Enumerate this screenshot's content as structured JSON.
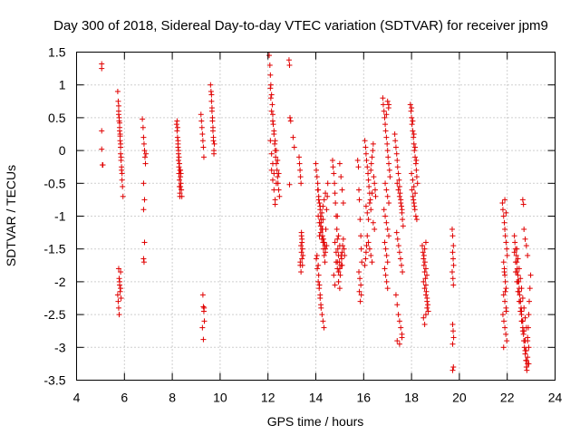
{
  "chart_data": {
    "type": "scatter",
    "title": "Day 300 of 2018, Sidereal Day-to-day VTEC variation (SDTVAR) for receiver jpm9",
    "xlabel": "GPS time / hours",
    "ylabel": "SDTVAR / TECUs",
    "xlim": [
      4,
      24
    ],
    "ylim": [
      -3.5,
      1.5
    ],
    "xticks": [
      4,
      6,
      8,
      10,
      12,
      14,
      16,
      18,
      20,
      22,
      24
    ],
    "xtick_labels": [
      "4",
      "6",
      "8",
      "10",
      "12",
      "14",
      "16",
      "18",
      "20",
      "22",
      "24"
    ],
    "yticks": [
      1.5,
      1,
      0.5,
      0,
      -0.5,
      -1,
      -1.5,
      -2,
      -2.5,
      -3,
      -3.5
    ],
    "ytick_labels": [
      "1.5",
      "1",
      "0.5",
      "0",
      "-0.5",
      "-1",
      "-1.5",
      "-2",
      "-2.5",
      "-3",
      "-3.5"
    ],
    "grid": true,
    "marker": "+",
    "color": "#e00000",
    "series": [
      {
        "name": "SDTVAR",
        "x": [
          5.05,
          5.05,
          5.05,
          5.05,
          5.08,
          5.1,
          5.72,
          5.74,
          5.76,
          5.76,
          5.78,
          5.8,
          5.8,
          5.82,
          5.82,
          5.84,
          5.84,
          5.86,
          5.88,
          5.9,
          5.9,
          5.92,
          5.94,
          5.76,
          5.78,
          5.8,
          5.82,
          5.84,
          5.86,
          5.88,
          5.76,
          5.78,
          5.8,
          5.84,
          5.72,
          5.74,
          5.76,
          5.78,
          5.8,
          5.82,
          5.84,
          5.86,
          6.75,
          6.78,
          6.8,
          6.82,
          6.84,
          6.86,
          6.88,
          6.9,
          6.8,
          6.84,
          6.8,
          6.84,
          6.8,
          6.82,
          8.18,
          8.2,
          8.22,
          8.24,
          8.26,
          8.28,
          8.3,
          8.32,
          8.34,
          8.36,
          8.38,
          8.4,
          8.2,
          8.22,
          8.24,
          8.26,
          8.28,
          8.3,
          8.32,
          8.34,
          8.36,
          8.24,
          8.26,
          8.28,
          8.3,
          8.32,
          8.34,
          9.2,
          9.22,
          9.24,
          9.26,
          9.28,
          9.3,
          9.32,
          9.28,
          9.3,
          9.32,
          9.34,
          9.26,
          9.3,
          9.33,
          9.6,
          9.62,
          9.64,
          9.66,
          9.68,
          9.7,
          9.72,
          9.74,
          9.64,
          9.66,
          9.68,
          9.7,
          9.72,
          9.74,
          9.76,
          12.05,
          12.08,
          12.1,
          12.12,
          12.15,
          12.18,
          12.2,
          12.22,
          12.25,
          12.28,
          12.3,
          12.32,
          12.35,
          12.38,
          12.4,
          12.42,
          12.45,
          12.48,
          12.1,
          12.12,
          12.15,
          12.2,
          12.25,
          12.3,
          12.35,
          12.4,
          12.45,
          12.15,
          12.2,
          12.25,
          12.3,
          12.35,
          12.1,
          12.15,
          12.2,
          12.25,
          12.3,
          12.88,
          12.9,
          12.92,
          12.95,
          12.9,
          13.05,
          13.1,
          13.3,
          13.32,
          13.34,
          13.36,
          13.38,
          13.4,
          13.42,
          13.44,
          13.46,
          13.35,
          13.38,
          13.4,
          13.42,
          13.35,
          13.38,
          13.42,
          13.4,
          13.44,
          14.0,
          14.02,
          14.05,
          14.08,
          14.1,
          14.12,
          14.15,
          14.18,
          14.2,
          14.22,
          14.25,
          14.28,
          14.3,
          14.32,
          14.35,
          14.38,
          14.4,
          14.42,
          14.45,
          14.48,
          14.5,
          14.1,
          14.15,
          14.2,
          14.25,
          14.3,
          14.35,
          14.4,
          14.45,
          14.05,
          14.1,
          14.15,
          14.2,
          14.25,
          14.3,
          14.35,
          14.4,
          14.08,
          14.12,
          14.18,
          14.22,
          14.28,
          14.32,
          14.38,
          14.02,
          14.06,
          14.1,
          14.14,
          14.18,
          14.22,
          14.26,
          14.3,
          14.34,
          14.12,
          14.15,
          14.18,
          14.21,
          14.7,
          14.72,
          14.75,
          14.78,
          14.8,
          14.82,
          14.85,
          14.88,
          14.9,
          14.92,
          14.95,
          14.98,
          15.0,
          15.02,
          15.05,
          15.08,
          15.1,
          15.12,
          15.15,
          15.18,
          15.2,
          14.8,
          14.85,
          14.9,
          14.95,
          15.0,
          15.05,
          15.1,
          15.15,
          14.9,
          14.95,
          15.0,
          15.05,
          15.1,
          14.75,
          14.8,
          14.85,
          14.9,
          14.95,
          15.0,
          15.75,
          15.78,
          15.8,
          15.82,
          15.85,
          15.88,
          15.9,
          15.92,
          15.8,
          15.84,
          15.88,
          15.82,
          15.86,
          15.9,
          16.05,
          16.08,
          16.1,
          16.12,
          16.15,
          16.18,
          16.2,
          16.22,
          16.25,
          16.28,
          16.3,
          16.32,
          16.35,
          16.38,
          16.4,
          16.42,
          16.45,
          16.48,
          16.5,
          16.1,
          16.15,
          16.2,
          16.25,
          16.3,
          16.35,
          16.4,
          16.45,
          16.15,
          16.2,
          16.25,
          16.3,
          16.35,
          16.05,
          16.08,
          16.1,
          16.12,
          16.8,
          16.82,
          16.85,
          16.88,
          16.9,
          16.92,
          16.95,
          16.98,
          17.0,
          17.02,
          17.05,
          17.08,
          17.1,
          16.9,
          16.95,
          17.0,
          17.05,
          16.85,
          16.9,
          16.95,
          17.0,
          17.05,
          16.88,
          16.92,
          16.96,
          17.0,
          16.88,
          16.92,
          16.96,
          17.0,
          17.04,
          16.95,
          17.0,
          17.05,
          17.3,
          17.32,
          17.35,
          17.38,
          17.4,
          17.42,
          17.45,
          17.48,
          17.5,
          17.52,
          17.55,
          17.58,
          17.6,
          17.62,
          17.65,
          17.4,
          17.45,
          17.5,
          17.55,
          17.6,
          17.38,
          17.42,
          17.46,
          17.5,
          17.54,
          17.58,
          17.62,
          17.35,
          17.4,
          17.45,
          17.5,
          17.55,
          17.6,
          17.4,
          17.5,
          17.6,
          17.95,
          17.98,
          18.0,
          18.02,
          18.05,
          18.08,
          18.1,
          18.12,
          18.15,
          18.18,
          18.2,
          18.22,
          18.25,
          18.0,
          18.05,
          18.1,
          18.15,
          18.2,
          18.02,
          18.06,
          18.1,
          18.14,
          18.18,
          18.22,
          18.0,
          18.05,
          18.1,
          18.15,
          18.08,
          18.12,
          18.45,
          18.48,
          18.5,
          18.52,
          18.55,
          18.58,
          18.6,
          18.62,
          18.65,
          18.68,
          18.7,
          18.5,
          18.55,
          18.6,
          18.65,
          18.52,
          18.56,
          18.6,
          18.64,
          18.5,
          18.55,
          18.6,
          18.65,
          18.55,
          18.6,
          19.7,
          19.72,
          19.75,
          19.72,
          19.74,
          19.76,
          19.7,
          19.73,
          19.75,
          19.72,
          19.74,
          19.76,
          19.72,
          19.75,
          19.72,
          21.8,
          21.82,
          21.85,
          21.88,
          21.9,
          21.92,
          21.95,
          21.98,
          22.0,
          21.85,
          21.88,
          21.9,
          21.92,
          21.95,
          21.85,
          21.9,
          21.95,
          21.82,
          21.86,
          21.9,
          21.94,
          21.98,
          21.85,
          21.9,
          21.95,
          21.88,
          21.92,
          21.96,
          22.3,
          22.32,
          22.35,
          22.38,
          22.4,
          22.42,
          22.45,
          22.48,
          22.5,
          22.52,
          22.55,
          22.58,
          22.6,
          22.62,
          22.65,
          22.68,
          22.7,
          22.72,
          22.75,
          22.78,
          22.8,
          22.82,
          22.85,
          22.88,
          22.9,
          22.92,
          22.95,
          22.98,
          22.4,
          22.45,
          22.5,
          22.55,
          22.6,
          22.65,
          22.7,
          22.75,
          22.8,
          22.85,
          22.9,
          22.35,
          22.4,
          22.45,
          22.5,
          22.55,
          22.6,
          22.65,
          22.7,
          22.75,
          22.8,
          22.85,
          22.3,
          22.35,
          22.4,
          22.45,
          22.5,
          22.55,
          22.6,
          22.65,
          22.7,
          22.75,
          22.8,
          22.85,
          22.9,
          22.65,
          22.68,
          22.7,
          22.75,
          22.8,
          22.85
        ],
        "y": [
          1.32,
          1.25,
          0.3,
          0.02,
          -0.22,
          -0.22,
          0.9,
          0.75,
          0.68,
          0.6,
          0.5,
          0.42,
          0.3,
          0.22,
          0.15,
          0.05,
          -0.05,
          -0.15,
          -0.25,
          -0.35,
          -0.45,
          -0.55,
          -0.7,
          0.55,
          0.45,
          0.35,
          0.25,
          0.1,
          -0.1,
          -0.3,
          -1.8,
          -1.95,
          -2.05,
          -2.1,
          -2.2,
          -2.3,
          -2.4,
          -2.5,
          -2.0,
          -2.15,
          -1.85,
          -2.25,
          0.48,
          0.35,
          0.2,
          0.1,
          0.0,
          -0.1,
          -0.2,
          -0.05,
          -0.5,
          -0.75,
          -0.9,
          -1.4,
          -1.65,
          -1.7,
          0.4,
          0.3,
          0.2,
          0.1,
          0.0,
          -0.1,
          -0.2,
          -0.3,
          -0.4,
          -0.5,
          -0.6,
          -0.7,
          0.45,
          0.35,
          0.15,
          -0.05,
          -0.25,
          -0.45,
          -0.65,
          -0.55,
          -0.35,
          0.05,
          -0.15,
          -0.35,
          -0.55,
          -0.7,
          -0.3,
          0.55,
          0.45,
          0.35,
          0.25,
          0.15,
          0.05,
          -0.1,
          -2.2,
          -2.38,
          -2.45,
          -2.6,
          -2.7,
          -2.88,
          -2.4,
          1.0,
          0.9,
          0.75,
          0.6,
          0.45,
          0.3,
          0.15,
          0.0,
          0.85,
          0.65,
          0.5,
          0.35,
          0.2,
          -0.05,
          0.1,
          1.45,
          1.3,
          1.15,
          1.0,
          0.85,
          0.7,
          0.55,
          0.4,
          0.25,
          0.1,
          0.0,
          -0.1,
          -0.2,
          -0.3,
          -0.4,
          -0.5,
          -0.6,
          -0.7,
          0.95,
          0.8,
          0.6,
          0.45,
          0.3,
          0.15,
          0.0,
          -0.15,
          -0.35,
          -0.3,
          -0.45,
          -0.6,
          -0.75,
          -0.5,
          0.15,
          -0.05,
          -0.2,
          -0.35,
          -0.82,
          1.38,
          1.3,
          0.5,
          0.45,
          -0.52,
          0.2,
          0.05,
          -0.1,
          -0.2,
          -0.3,
          -0.4,
          -0.5,
          -1.3,
          -1.4,
          -1.5,
          -1.6,
          -1.7,
          -1.45,
          -1.55,
          -1.65,
          -1.75,
          -1.85,
          -1.35,
          -1.25,
          -1.75,
          -0.2,
          -0.3,
          -0.4,
          -0.5,
          -0.6,
          -0.7,
          -0.8,
          -0.9,
          -1.0,
          -1.1,
          -1.2,
          -1.3,
          -1.4,
          -1.5,
          -1.6,
          -1.7,
          -1.5,
          -1.2,
          -0.9,
          -0.7,
          -0.5,
          -1.0,
          -1.1,
          -1.25,
          -1.35,
          -0.85,
          -0.75,
          -0.65,
          -1.45,
          -1.6,
          -1.75,
          -1.3,
          -1.15,
          -0.95,
          -1.05,
          -1.4,
          -1.55,
          -0.6,
          -0.75,
          -0.85,
          -1.05,
          -1.2,
          -1.35,
          -1.45,
          -1.65,
          -1.8,
          -2.0,
          -2.1,
          -2.25,
          -2.4,
          -2.5,
          -2.6,
          -2.7,
          -1.9,
          -2.05,
          -2.2,
          -2.35,
          -0.15,
          -0.25,
          -0.35,
          -0.5,
          -0.65,
          -0.8,
          -1.0,
          -1.2,
          -1.35,
          -1.5,
          -1.6,
          -1.7,
          -1.8,
          -1.9,
          -1.75,
          -1.65,
          -1.55,
          -1.45,
          -1.35,
          -1.5,
          -1.6,
          -1.4,
          -1.55,
          -1.7,
          -1.85,
          -0.2,
          -0.4,
          -0.6,
          -0.8,
          -1.0,
          -1.3,
          -1.45,
          -1.6,
          -1.75,
          -1.9,
          -2.05,
          -1.7,
          -1.8,
          -2.0,
          -2.1,
          -0.15,
          -0.25,
          -0.6,
          -0.75,
          -1.05,
          -1.3,
          -1.5,
          -1.7,
          -1.85,
          -1.95,
          -2.05,
          -2.15,
          -2.3,
          -2.2,
          0.15,
          0.05,
          -0.05,
          -0.15,
          -0.25,
          -0.35,
          -0.45,
          -0.55,
          -0.65,
          -0.75,
          -0.3,
          -0.2,
          -0.1,
          0.0,
          0.1,
          -0.4,
          -0.5,
          -0.6,
          -0.7,
          -0.85,
          -0.95,
          -1.05,
          -0.8,
          -0.9,
          -0.65,
          -1.1,
          -1.2,
          -1.3,
          -1.4,
          -1.5,
          -1.6,
          -1.7,
          -1.75,
          -1.65,
          -1.55,
          -1.45,
          0.8,
          0.7,
          0.6,
          0.5,
          0.4,
          0.3,
          0.2,
          0.1,
          0.0,
          -0.1,
          -0.2,
          -0.3,
          -0.4,
          -0.5,
          -0.6,
          -0.7,
          -0.8,
          -0.9,
          -1.0,
          -1.1,
          -1.2,
          -1.3,
          -1.4,
          -1.5,
          -1.6,
          -1.7,
          -1.8,
          -1.9,
          -2.0,
          -2.1,
          0.65,
          0.55,
          0.75,
          0.7,
          0.25,
          0.15,
          0.05,
          -0.05,
          -0.15,
          -0.25,
          -0.35,
          -0.45,
          -0.55,
          -0.65,
          -0.75,
          -0.85,
          -0.95,
          -1.05,
          -1.15,
          -0.5,
          -0.6,
          -0.7,
          -0.8,
          -0.9,
          -1.25,
          -1.35,
          -1.45,
          -1.55,
          -1.65,
          -1.75,
          -1.85,
          -2.2,
          -2.35,
          -2.5,
          -2.6,
          -2.7,
          -2.8,
          -2.9,
          -2.95,
          -2.85,
          0.7,
          0.6,
          0.5,
          0.4,
          0.3,
          0.2,
          0.1,
          0.0,
          -0.1,
          -0.2,
          -0.3,
          -0.4,
          -0.5,
          0.65,
          0.45,
          0.25,
          0.05,
          -0.15,
          -0.6,
          -0.7,
          -0.8,
          -0.9,
          -1.0,
          -1.05,
          -0.35,
          -0.45,
          -0.55,
          -0.65,
          -0.75,
          -0.85,
          -1.45,
          -1.55,
          -1.65,
          -1.75,
          -1.85,
          -1.95,
          -2.05,
          -2.15,
          -2.25,
          -2.35,
          -2.45,
          -2.55,
          -2.65,
          -2.5,
          -2.4,
          -1.6,
          -1.7,
          -1.8,
          -1.9,
          -2.0,
          -2.1,
          -2.2,
          -2.3,
          -1.5,
          -1.4,
          -1.2,
          -1.3,
          -1.45,
          -1.55,
          -1.65,
          -1.75,
          -1.85,
          -1.95,
          -2.05,
          -2.65,
          -2.75,
          -2.85,
          -2.95,
          -3.3,
          -3.35,
          -0.8,
          -0.9,
          -1.0,
          -1.1,
          -1.2,
          -1.3,
          -1.4,
          -1.5,
          -1.6,
          -1.7,
          -1.8,
          -1.9,
          -2.0,
          -2.1,
          -2.2,
          -2.3,
          -2.4,
          -2.5,
          -2.6,
          -2.7,
          -2.8,
          -2.9,
          -3.0,
          -0.75,
          -0.95,
          -1.85,
          -2.15,
          -2.45,
          -1.3,
          -1.4,
          -1.5,
          -1.6,
          -1.7,
          -1.8,
          -1.9,
          -2.0,
          -2.1,
          -2.2,
          -2.3,
          -2.4,
          -2.5,
          -2.6,
          -2.7,
          -2.8,
          -2.9,
          -3.0,
          -3.1,
          -3.2,
          -3.3,
          -3.35,
          -2.9,
          -2.7,
          -2.5,
          -2.3,
          -2.1,
          -1.9,
          -1.5,
          -1.65,
          -1.8,
          -1.95,
          -2.1,
          -2.25,
          -2.4,
          -2.55,
          -2.7,
          -2.85,
          -3.0,
          -1.85,
          -2.0,
          -2.15,
          -2.3,
          -2.45,
          -2.6,
          -2.75,
          -2.9,
          -3.05,
          -3.2,
          -3.25,
          -1.55,
          -1.7,
          -1.85,
          -2.0,
          -2.15,
          -2.3,
          -2.45,
          -2.6,
          -2.75,
          -2.9,
          -3.05,
          -3.15,
          -3.25,
          -0.75,
          -0.82,
          -1.2,
          -1.35,
          -1.45,
          -1.6
        ]
      }
    ]
  }
}
